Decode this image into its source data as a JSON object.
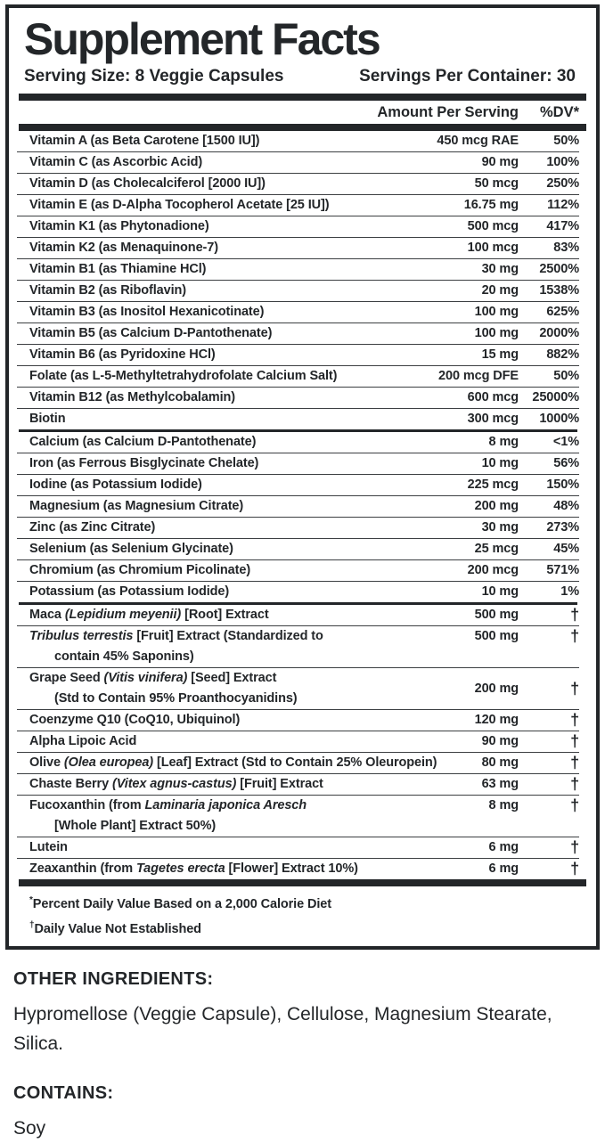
{
  "title": "Supplement Facts",
  "serving_size_label": "Serving Size: 8 Veggie Capsules",
  "servings_per_container_label": "Servings Per Container: 30",
  "columns": {
    "amount": "Amount Per Serving",
    "dv": "%DV*"
  },
  "sections": [
    {
      "name": "vitamins",
      "rows": [
        {
          "name": [
            {
              "t": "Vitamin A (as Beta Carotene [1500 IU])"
            }
          ],
          "amount": "450 mcg RAE",
          "dv": "50%"
        },
        {
          "name": [
            {
              "t": "Vitamin C (as Ascorbic Acid)"
            }
          ],
          "amount": "90 mg",
          "dv": "100%"
        },
        {
          "name": [
            {
              "t": "Vitamin D (as Cholecalciferol [2000 IU])"
            }
          ],
          "amount": "50 mcg",
          "dv": "250%"
        },
        {
          "name": [
            {
              "t": "Vitamin E (as D-Alpha Tocopherol Acetate [25 IU])"
            }
          ],
          "amount": "16.75 mg",
          "dv": "112%"
        },
        {
          "name": [
            {
              "t": "Vitamin K1 (as Phytonadione)"
            }
          ],
          "amount": "500 mcg",
          "dv": "417%"
        },
        {
          "name": [
            {
              "t": "Vitamin K2 (as Menaquinone-7)"
            }
          ],
          "amount": "100 mcg",
          "dv": "83%"
        },
        {
          "name": [
            {
              "t": "Vitamin B1 (as Thiamine HCl)"
            }
          ],
          "amount": "30 mg",
          "dv": "2500%"
        },
        {
          "name": [
            {
              "t": "Vitamin B2 (as Riboflavin)"
            }
          ],
          "amount": "20 mg",
          "dv": "1538%"
        },
        {
          "name": [
            {
              "t": "Vitamin B3 (as Inositol Hexanicotinate)"
            }
          ],
          "amount": "100 mg",
          "dv": "625%"
        },
        {
          "name": [
            {
              "t": "Vitamin B5 (as Calcium D-Pantothenate)"
            }
          ],
          "amount": "100 mg",
          "dv": "2000%"
        },
        {
          "name": [
            {
              "t": "Vitamin B6 (as Pyridoxine HCl)"
            }
          ],
          "amount": "15 mg",
          "dv": "882%"
        },
        {
          "name": [
            {
              "t": "Folate (as L-5-Methyltetrahydrofolate Calcium Salt)"
            }
          ],
          "amount": "200 mcg DFE",
          "dv": "50%"
        },
        {
          "name": [
            {
              "t": "Vitamin B12 (as Methylcobalamin)"
            }
          ],
          "amount": "600 mcg",
          "dv": "25000%"
        },
        {
          "name": [
            {
              "t": "Biotin"
            }
          ],
          "amount": "300 mcg",
          "dv": "1000%"
        }
      ]
    },
    {
      "name": "minerals",
      "rows": [
        {
          "name": [
            {
              "t": "Calcium (as Calcium D-Pantothenate)"
            }
          ],
          "amount": "8 mg",
          "dv": "<1%"
        },
        {
          "name": [
            {
              "t": "Iron (as Ferrous Bisglycinate Chelate)"
            }
          ],
          "amount": "10 mg",
          "dv": "56%"
        },
        {
          "name": [
            {
              "t": "Iodine (as Potassium Iodide)"
            }
          ],
          "amount": "225 mcg",
          "dv": "150%"
        },
        {
          "name": [
            {
              "t": "Magnesium (as Magnesium Citrate)"
            }
          ],
          "amount": "200 mg",
          "dv": "48%"
        },
        {
          "name": [
            {
              "t": "Zinc (as Zinc Citrate)"
            }
          ],
          "amount": "30 mg",
          "dv": "273%"
        },
        {
          "name": [
            {
              "t": "Selenium (as Selenium Glycinate)"
            }
          ],
          "amount": "25 mcg",
          "dv": "45%"
        },
        {
          "name": [
            {
              "t": "Chromium (as Chromium Picolinate)"
            }
          ],
          "amount": "200 mcg",
          "dv": "571%"
        },
        {
          "name": [
            {
              "t": "Potassium (as Potassium Iodide)"
            }
          ],
          "amount": "10 mg",
          "dv": "1%"
        }
      ]
    },
    {
      "name": "botanicals",
      "rows": [
        {
          "name": [
            {
              "t": "Maca "
            },
            {
              "t": "(Lepidium meyenii)",
              "i": true
            },
            {
              "t": " [Root] Extract"
            }
          ],
          "amount": "500 mg",
          "dv": "†"
        },
        {
          "name": [
            {
              "t": "Tribulus terrestis",
              "i": true
            },
            {
              "t": " [Fruit] Extract (Standardized to"
            }
          ],
          "name2": [
            {
              "t": "contain 45% Saponins)"
            }
          ],
          "amount": "500 mg",
          "dv": "†"
        },
        {
          "name": [
            {
              "t": "Grape Seed "
            },
            {
              "t": "(Vitis vinifera)",
              "i": true
            },
            {
              "t": " [Seed] Extract"
            }
          ],
          "name2": [
            {
              "t": "(Std to Contain 95% Proanthocyanidins)"
            }
          ],
          "amount": "200 mg",
          "dv": "†",
          "align": "center"
        },
        {
          "name": [
            {
              "t": "Coenzyme Q10 (CoQ10, Ubiquinol)"
            }
          ],
          "amount": "120 mg",
          "dv": "†"
        },
        {
          "name": [
            {
              "t": "Alpha Lipoic Acid"
            }
          ],
          "amount": "90 mg",
          "dv": "†"
        },
        {
          "name": [
            {
              "t": "Olive "
            },
            {
              "t": "(Olea europea)",
              "i": true
            },
            {
              "t": " [Leaf] Extract (Std to Contain 25% Oleuropein)"
            }
          ],
          "amount": "80 mg",
          "dv": "†"
        },
        {
          "name": [
            {
              "t": "Chaste Berry "
            },
            {
              "t": "(Vitex agnus-castus)",
              "i": true
            },
            {
              "t": " [Fruit] Extract"
            }
          ],
          "amount": "63 mg",
          "dv": "†"
        },
        {
          "name": [
            {
              "t": "Fucoxanthin (from "
            },
            {
              "t": "Laminaria japonica Aresch",
              "i": true
            }
          ],
          "name2": [
            {
              "t": "[Whole Plant] Extract 50%)"
            }
          ],
          "amount": "8 mg",
          "dv": "†"
        },
        {
          "name": [
            {
              "t": "Lutein"
            }
          ],
          "amount": "6 mg",
          "dv": "†"
        },
        {
          "name": [
            {
              "t": "Zeaxanthin (from "
            },
            {
              "t": "Tagetes erecta",
              "i": true
            },
            {
              "t": " [Flower] Extract 10%)"
            }
          ],
          "amount": "6 mg",
          "dv": "†"
        }
      ]
    }
  ],
  "footnotes": [
    {
      "mark": "*",
      "text": "Percent Daily Value Based on a 2,000 Calorie Diet",
      "sup": true
    },
    {
      "mark": "†",
      "text": "Daily Value Not Established",
      "sup": true
    }
  ],
  "other_ingredients": {
    "heading": "OTHER INGREDIENTS:",
    "text": "Hypromellose (Veggie Capsule), Cellulose, Magnesium Stearate, Silica."
  },
  "contains": {
    "heading": "CONTAINS:",
    "text": "Soy"
  },
  "colors": {
    "ink": "#232629",
    "hairline": "#3c3f42",
    "background": "#ffffff"
  }
}
